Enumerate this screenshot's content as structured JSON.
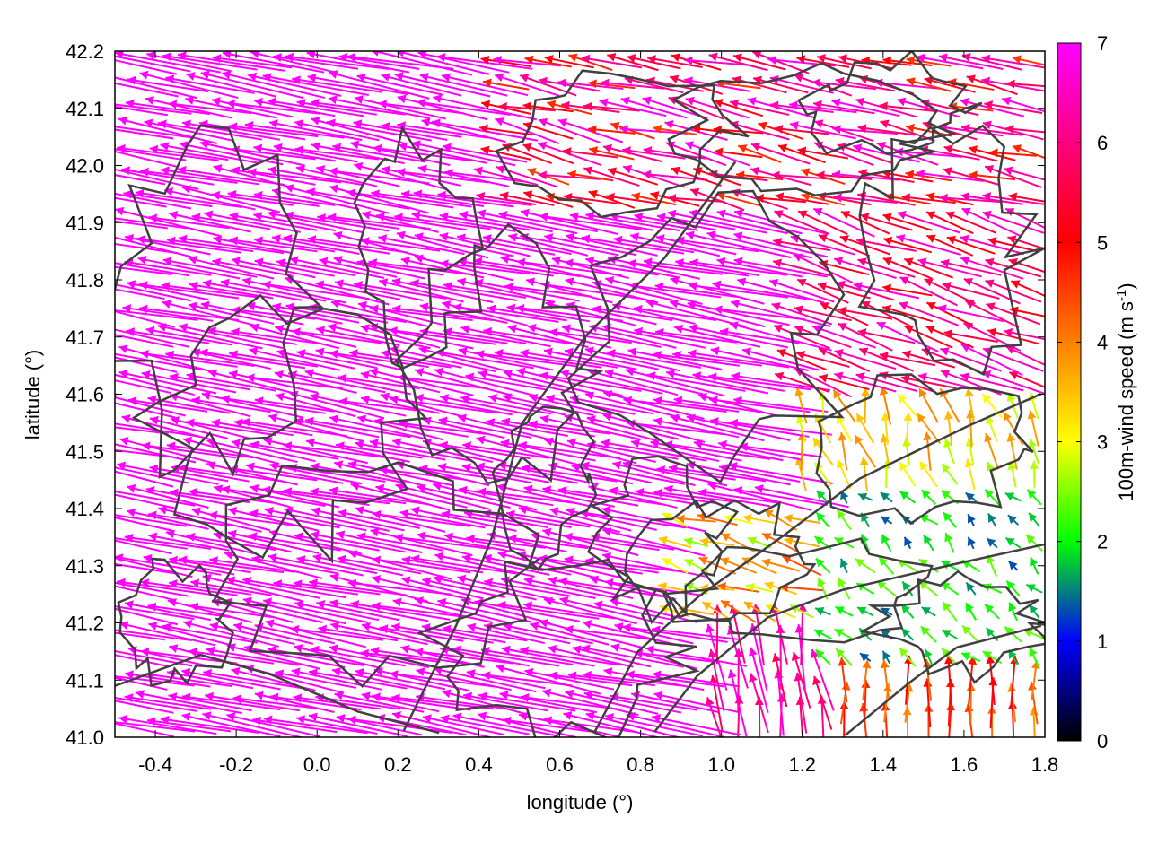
{
  "chart_data": {
    "type": "vector-field",
    "title": "",
    "xlabel": "longitude (°)",
    "ylabel": "latitude (°)",
    "xlim": [
      -0.5,
      1.8
    ],
    "ylim": [
      41.0,
      42.2
    ],
    "xticks": [
      -0.4,
      -0.2,
      0.0,
      0.2,
      0.4,
      0.6,
      0.8,
      1.0,
      1.2,
      1.4,
      1.6,
      1.8
    ],
    "xtick_labels": [
      "-0.4",
      "-0.2",
      "0.0",
      "0.2",
      "0.4",
      "0.6",
      "0.8",
      "1.0",
      "1.2",
      "1.4",
      "1.6",
      "1.8"
    ],
    "yticks": [
      41.0,
      41.1,
      41.2,
      41.3,
      41.4,
      41.5,
      41.6,
      41.7,
      41.8,
      41.9,
      42.0,
      42.1,
      42.2
    ],
    "ytick_labels": [
      "41.0",
      "41.1",
      "41.2",
      "41.3",
      "41.4",
      "41.5",
      "41.6",
      "41.7",
      "41.8",
      "41.9",
      "42.0",
      "42.1",
      "42.2"
    ],
    "grid": false,
    "colorbar": {
      "label": "100m-wind speed (m s",
      "label_sup": "-1",
      "label_end": ")",
      "range": [
        0,
        7
      ],
      "ticks": [
        0,
        1,
        2,
        3,
        4,
        5,
        6,
        7
      ],
      "tick_labels": [
        "0",
        "1",
        "2",
        "3",
        "4",
        "5",
        "6",
        "7"
      ],
      "colors": [
        "#000000",
        "#0000ff",
        "#00ff00",
        "#ffff00",
        "#ff8000",
        "#ff0000",
        "#ff00ff"
      ]
    },
    "wind_field": {
      "description_regions": [
        {
          "region": "west and center",
          "speed_ms": 7,
          "direction": "from east-southeast toward west-northwest"
        },
        {
          "region": "east (lon 1.2–1.8, lat 41.2–41.6)",
          "speed_ms": 2,
          "direction": "weak, variable"
        },
        {
          "region": "southeast (lon 1.3–1.8, lat 41.0–41.1)",
          "speed_ms": 4,
          "direction": "northward"
        },
        {
          "region": "northeast (lon 0.5–1.8, lat 41.9–42.2)",
          "speed_ms": 5,
          "direction": "westward"
        }
      ]
    },
    "contour_color": "#404040"
  }
}
